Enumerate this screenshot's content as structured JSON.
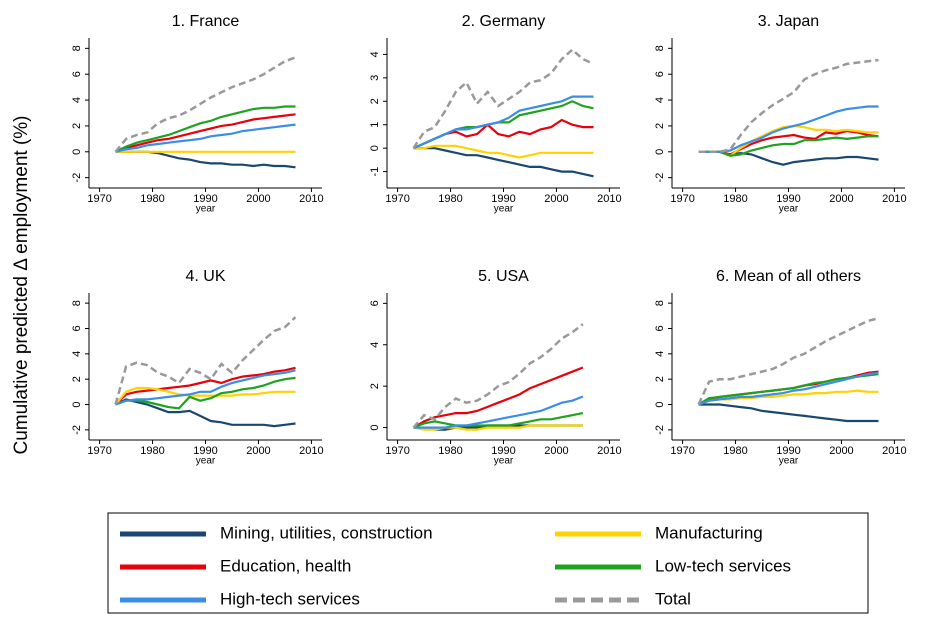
{
  "y_label": "Cumulative predicted Δ employment (%)",
  "legend": [
    {
      "name": "Mining, utilities, construction",
      "color": "#1a476f",
      "dash": false
    },
    {
      "name": "Manufacturing",
      "color": "#ffd200",
      "dash": false
    },
    {
      "name": "Education, health",
      "color": "#e8000b",
      "dash": false
    },
    {
      "name": "Low-tech services",
      "color": "#1fa31f",
      "dash": false
    },
    {
      "name": "High-tech services",
      "color": "#3a8ee6",
      "dash": false
    },
    {
      "name": "Total",
      "color": "#999999",
      "dash": true
    }
  ],
  "series_order": [
    0,
    2,
    1,
    3,
    4,
    5
  ],
  "chart_data": [
    {
      "type": "line",
      "title": "1. France",
      "x_label": "year",
      "x": [
        1973,
        1975,
        1977,
        1979,
        1981,
        1983,
        1985,
        1987,
        1989,
        1991,
        1993,
        1995,
        1997,
        1999,
        2001,
        2003,
        2005,
        2007
      ],
      "xlim": [
        1968,
        2012
      ],
      "xticks": [
        1970,
        1980,
        1990,
        2000,
        2010
      ],
      "ylim": [
        -2.8,
        8.8
      ],
      "yticks": [
        -2,
        0,
        2,
        4,
        6,
        8
      ],
      "series": [
        {
          "values": [
            0,
            0,
            0,
            0,
            -0.1,
            -0.3,
            -0.5,
            -0.6,
            -0.8,
            -0.9,
            -0.9,
            -1.0,
            -1.0,
            -1.1,
            -1.0,
            -1.1,
            -1.1,
            -1.2
          ]
        },
        {
          "values": [
            0,
            0,
            0,
            0,
            0,
            0,
            0,
            0,
            0,
            0,
            0,
            0,
            0,
            0,
            0,
            0,
            0,
            0
          ]
        },
        {
          "values": [
            0,
            0.3,
            0.5,
            0.7,
            0.9,
            1.0,
            1.2,
            1.4,
            1.6,
            1.8,
            2.0,
            2.1,
            2.3,
            2.5,
            2.6,
            2.7,
            2.8,
            2.9
          ]
        },
        {
          "values": [
            0,
            0.4,
            0.7,
            0.9,
            1.1,
            1.3,
            1.6,
            1.9,
            2.2,
            2.4,
            2.7,
            2.9,
            3.1,
            3.3,
            3.4,
            3.4,
            3.5,
            3.5
          ]
        },
        {
          "values": [
            0,
            0.2,
            0.3,
            0.5,
            0.6,
            0.7,
            0.8,
            0.9,
            1.0,
            1.2,
            1.3,
            1.4,
            1.6,
            1.7,
            1.8,
            1.9,
            2.0,
            2.1
          ]
        },
        {
          "values": [
            0,
            1.0,
            1.3,
            1.5,
            2.2,
            2.6,
            2.8,
            3.2,
            3.7,
            4.2,
            4.6,
            5.0,
            5.3,
            5.6,
            6.0,
            6.5,
            7.0,
            7.3
          ]
        }
      ]
    },
    {
      "type": "line",
      "title": "2. Germany",
      "x_label": "year",
      "x": [
        1973,
        1975,
        1977,
        1979,
        1981,
        1983,
        1985,
        1987,
        1989,
        1991,
        1993,
        1995,
        1997,
        1999,
        2001,
        2003,
        2005,
        2007
      ],
      "xlim": [
        1968,
        2012
      ],
      "xticks": [
        1970,
        1980,
        1990,
        2000,
        2010
      ],
      "ylim": [
        -1.7,
        4.7
      ],
      "yticks": [
        -1,
        0,
        1,
        2,
        3,
        4
      ],
      "series": [
        {
          "values": [
            0,
            0,
            0,
            -0.1,
            -0.2,
            -0.3,
            -0.3,
            -0.4,
            -0.5,
            -0.6,
            -0.7,
            -0.8,
            -0.8,
            -0.9,
            -1.0,
            -1.0,
            -1.1,
            -1.2
          ]
        },
        {
          "values": [
            0,
            0,
            0.1,
            0.1,
            0.1,
            0,
            -0.1,
            -0.2,
            -0.2,
            -0.3,
            -0.4,
            -0.3,
            -0.2,
            -0.2,
            -0.2,
            -0.2,
            -0.2,
            -0.2
          ]
        },
        {
          "values": [
            0,
            0.2,
            0.4,
            0.6,
            0.7,
            0.5,
            0.6,
            1.0,
            0.6,
            0.5,
            0.7,
            0.6,
            0.8,
            0.9,
            1.2,
            1.0,
            0.9,
            0.9
          ]
        },
        {
          "values": [
            0,
            0.2,
            0.4,
            0.6,
            0.8,
            0.9,
            0.9,
            1.0,
            1.1,
            1.1,
            1.4,
            1.5,
            1.6,
            1.7,
            1.8,
            2.0,
            1.8,
            1.7
          ]
        },
        {
          "values": [
            0,
            0.2,
            0.4,
            0.6,
            0.8,
            0.8,
            0.9,
            1.0,
            1.1,
            1.3,
            1.6,
            1.7,
            1.8,
            1.9,
            2.0,
            2.2,
            2.2,
            2.2
          ]
        },
        {
          "values": [
            0,
            0.7,
            0.9,
            1.6,
            2.4,
            2.8,
            1.9,
            2.4,
            1.8,
            2.1,
            2.4,
            2.8,
            2.9,
            3.2,
            3.8,
            4.2,
            3.8,
            3.6
          ]
        }
      ]
    },
    {
      "type": "line",
      "title": "3. Japan",
      "x_label": "year",
      "x": [
        1973,
        1975,
        1977,
        1979,
        1981,
        1983,
        1985,
        1987,
        1989,
        1991,
        1993,
        1995,
        1997,
        1999,
        2001,
        2003,
        2005,
        2007
      ],
      "xlim": [
        1968,
        2012
      ],
      "xticks": [
        1970,
        1980,
        1990,
        2000,
        2010
      ],
      "ylim": [
        -2.8,
        8.8
      ],
      "yticks": [
        -2,
        0,
        2,
        4,
        6,
        8
      ],
      "series": [
        {
          "values": [
            0,
            0,
            0,
            -0.2,
            -0.1,
            -0.2,
            -0.5,
            -0.8,
            -1.0,
            -0.8,
            -0.7,
            -0.6,
            -0.5,
            -0.5,
            -0.4,
            -0.4,
            -0.5,
            -0.6
          ]
        },
        {
          "values": [
            0,
            0,
            0,
            -0.3,
            0.3,
            0.8,
            1.2,
            1.6,
            1.9,
            2.0,
            1.9,
            1.7,
            1.7,
            1.6,
            1.7,
            1.6,
            1.5,
            1.5
          ]
        },
        {
          "values": [
            0,
            0,
            0,
            -0.2,
            0.2,
            0.6,
            0.9,
            1.1,
            1.2,
            1.3,
            1.1,
            1.0,
            1.5,
            1.4,
            1.6,
            1.5,
            1.3,
            1.2
          ]
        },
        {
          "values": [
            0,
            0,
            0,
            -0.3,
            -0.2,
            0.1,
            0.3,
            0.5,
            0.6,
            0.6,
            0.9,
            0.9,
            1.0,
            1.1,
            1.0,
            1.1,
            1.2,
            1.2
          ]
        },
        {
          "values": [
            0,
            0,
            0,
            0.1,
            0.5,
            0.8,
            1.1,
            1.5,
            1.8,
            2.0,
            2.2,
            2.5,
            2.8,
            3.1,
            3.3,
            3.4,
            3.5,
            3.5
          ]
        },
        {
          "values": [
            0,
            0,
            0,
            0.2,
            1.3,
            2.3,
            3.0,
            3.6,
            4.1,
            4.6,
            5.6,
            6.0,
            6.3,
            6.5,
            6.8,
            6.9,
            7.0,
            7.1
          ]
        }
      ]
    },
    {
      "type": "line",
      "title": "4. UK",
      "x_label": "year",
      "x": [
        1973,
        1975,
        1977,
        1979,
        1981,
        1983,
        1985,
        1987,
        1989,
        1991,
        1993,
        1995,
        1997,
        1999,
        2001,
        2003,
        2005,
        2007
      ],
      "xlim": [
        1968,
        2012
      ],
      "xticks": [
        1970,
        1980,
        1990,
        2000,
        2010
      ],
      "ylim": [
        -2.8,
        8.8
      ],
      "yticks": [
        -2,
        0,
        2,
        4,
        6,
        8
      ],
      "series": [
        {
          "values": [
            0,
            0.4,
            0.2,
            0,
            -0.3,
            -0.6,
            -0.6,
            -0.5,
            -0.9,
            -1.3,
            -1.4,
            -1.6,
            -1.6,
            -1.6,
            -1.6,
            -1.7,
            -1.6,
            -1.5
          ]
        },
        {
          "values": [
            0,
            1.0,
            1.3,
            1.3,
            1.2,
            1.0,
            0.8,
            0.7,
            0.7,
            0.7,
            0.7,
            0.7,
            0.8,
            0.8,
            0.9,
            1.0,
            1.0,
            1.0
          ]
        },
        {
          "values": [
            0,
            0.8,
            1.0,
            1.1,
            1.2,
            1.3,
            1.4,
            1.5,
            1.7,
            1.9,
            1.7,
            2.0,
            2.2,
            2.3,
            2.4,
            2.6,
            2.7,
            2.9
          ]
        },
        {
          "values": [
            0,
            0.3,
            0.3,
            0.2,
            0,
            -0.2,
            -0.3,
            0.6,
            0.3,
            0.5,
            0.9,
            1.0,
            1.2,
            1.3,
            1.5,
            1.8,
            2.0,
            2.1
          ]
        },
        {
          "values": [
            0,
            0.3,
            0.4,
            0.4,
            0.5,
            0.6,
            0.7,
            0.8,
            1.0,
            1.0,
            1.4,
            1.7,
            1.9,
            2.1,
            2.3,
            2.4,
            2.5,
            2.7
          ]
        },
        {
          "values": [
            0,
            3.0,
            3.3,
            3.1,
            2.5,
            2.2,
            1.7,
            2.8,
            2.5,
            2.0,
            3.2,
            2.5,
            3.5,
            4.3,
            5.1,
            5.8,
            6.1,
            6.9
          ]
        }
      ]
    },
    {
      "type": "line",
      "title": "5. USA",
      "x_label": "year",
      "x": [
        1973,
        1975,
        1977,
        1979,
        1981,
        1983,
        1985,
        1987,
        1989,
        1991,
        1993,
        1995,
        1997,
        1999,
        2001,
        2003,
        2005
      ],
      "xlim": [
        1968,
        2012
      ],
      "xticks": [
        1970,
        1980,
        1990,
        2000,
        2010
      ],
      "ylim": [
        -0.6,
        6.5
      ],
      "yticks": [
        0,
        2,
        4,
        6
      ],
      "series": [
        {
          "values": [
            0,
            0,
            -0.1,
            -0.1,
            0,
            0,
            0,
            0.1,
            0.1,
            0.1,
            0.1,
            0.1,
            0.1,
            0.1,
            0.1,
            0.1,
            0.1
          ]
        },
        {
          "values": [
            0,
            -0.1,
            -0.1,
            0,
            0,
            -0.1,
            -0.1,
            0,
            0,
            0,
            0,
            0.1,
            0.1,
            0.1,
            0.1,
            0.1,
            0.1
          ]
        },
        {
          "values": [
            0,
            0.3,
            0.5,
            0.6,
            0.7,
            0.7,
            0.8,
            1.0,
            1.2,
            1.4,
            1.6,
            1.9,
            2.1,
            2.3,
            2.5,
            2.7,
            2.9
          ]
        },
        {
          "values": [
            0,
            0.2,
            0.3,
            0.2,
            0.1,
            0.1,
            0.1,
            0.1,
            0.1,
            0.1,
            0.2,
            0.3,
            0.4,
            0.4,
            0.5,
            0.6,
            0.7
          ]
        },
        {
          "values": [
            0,
            0,
            0,
            0,
            0.1,
            0.1,
            0.2,
            0.3,
            0.4,
            0.5,
            0.6,
            0.7,
            0.8,
            1.0,
            1.2,
            1.3,
            1.5
          ]
        },
        {
          "values": [
            0,
            0.6,
            0.4,
            1.0,
            1.4,
            1.2,
            1.3,
            1.6,
            2.0,
            2.2,
            2.6,
            3.1,
            3.4,
            3.8,
            4.3,
            4.6,
            5.0
          ]
        }
      ]
    },
    {
      "type": "line",
      "title": "6. Mean of all others",
      "x_label": "year",
      "x": [
        1973,
        1975,
        1977,
        1979,
        1981,
        1983,
        1985,
        1987,
        1989,
        1991,
        1993,
        1995,
        1997,
        1999,
        2001,
        2003,
        2005,
        2007
      ],
      "xlim": [
        1968,
        2012
      ],
      "xticks": [
        1970,
        1980,
        1990,
        2000,
        2010
      ],
      "ylim": [
        -2.8,
        8.8
      ],
      "yticks": [
        -2,
        0,
        2,
        4,
        6,
        8
      ],
      "series": [
        {
          "values": [
            0,
            0,
            0,
            -0.1,
            -0.2,
            -0.3,
            -0.5,
            -0.6,
            -0.7,
            -0.8,
            -0.9,
            -1.0,
            -1.1,
            -1.2,
            -1.3,
            -1.3,
            -1.3,
            -1.3
          ]
        },
        {
          "values": [
            0,
            0.3,
            0.4,
            0.4,
            0.5,
            0.5,
            0.6,
            0.6,
            0.7,
            0.8,
            0.8,
            0.9,
            0.9,
            1.0,
            1.0,
            1.1,
            1.0,
            1.0
          ]
        },
        {
          "values": [
            0,
            0.4,
            0.6,
            0.7,
            0.8,
            0.9,
            1.0,
            1.1,
            1.2,
            1.3,
            1.5,
            1.6,
            1.8,
            2.0,
            2.1,
            2.3,
            2.5,
            2.6
          ]
        },
        {
          "values": [
            0,
            0.5,
            0.6,
            0.7,
            0.8,
            0.9,
            1.0,
            1.1,
            1.2,
            1.3,
            1.5,
            1.7,
            1.8,
            2.0,
            2.1,
            2.2,
            2.3,
            2.4
          ]
        },
        {
          "values": [
            0,
            0.3,
            0.4,
            0.5,
            0.6,
            0.6,
            0.7,
            0.8,
            0.9,
            1.1,
            1.2,
            1.4,
            1.6,
            1.8,
            2.0,
            2.2,
            2.4,
            2.5
          ]
        },
        {
          "values": [
            0,
            1.8,
            2.0,
            2.0,
            2.2,
            2.4,
            2.6,
            2.8,
            3.2,
            3.7,
            4.0,
            4.5,
            5.0,
            5.4,
            5.8,
            6.2,
            6.6,
            6.8
          ]
        }
      ]
    }
  ]
}
